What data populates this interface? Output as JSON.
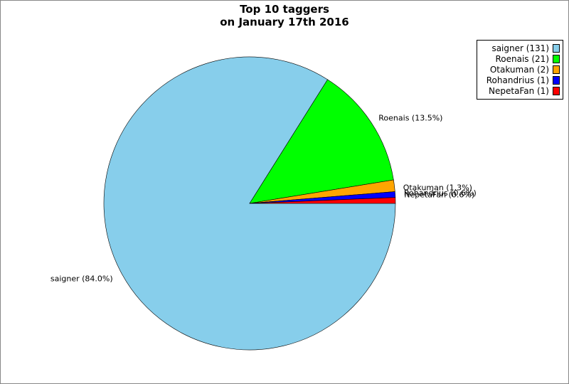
{
  "chart_data": {
    "type": "pie",
    "title_lines": [
      "Top 10 taggers",
      "on January 17th 2016"
    ],
    "series": [
      {
        "name": "saigner",
        "count": 131,
        "percent": "84.0%",
        "color": "#87ceeb"
      },
      {
        "name": "Roenais",
        "count": 21,
        "percent": "13.5%",
        "color": "#00ff00"
      },
      {
        "name": "Otakuman",
        "count": 2,
        "percent": "1.3%",
        "color": "#ffa500"
      },
      {
        "name": "Rohandrius",
        "count": 1,
        "percent": "0.6%",
        "color": "#0000ff"
      },
      {
        "name": "NepetaFan",
        "count": 1,
        "percent": "0.6%",
        "color": "#ff0000"
      }
    ],
    "legend": {
      "placement": "top-right",
      "entries": [
        "saigner (131)",
        "Roenais (21)",
        "Otakuman (2)",
        "Rohandrius (1)",
        "NepetaFan (1)"
      ]
    },
    "slice_labels": [
      "saigner (84.0%)",
      "Roenais (13.5%)",
      "Otakuman (1.3%)",
      "Rohandrius (0.6%)",
      "NepetaFan (0.6%)"
    ]
  }
}
